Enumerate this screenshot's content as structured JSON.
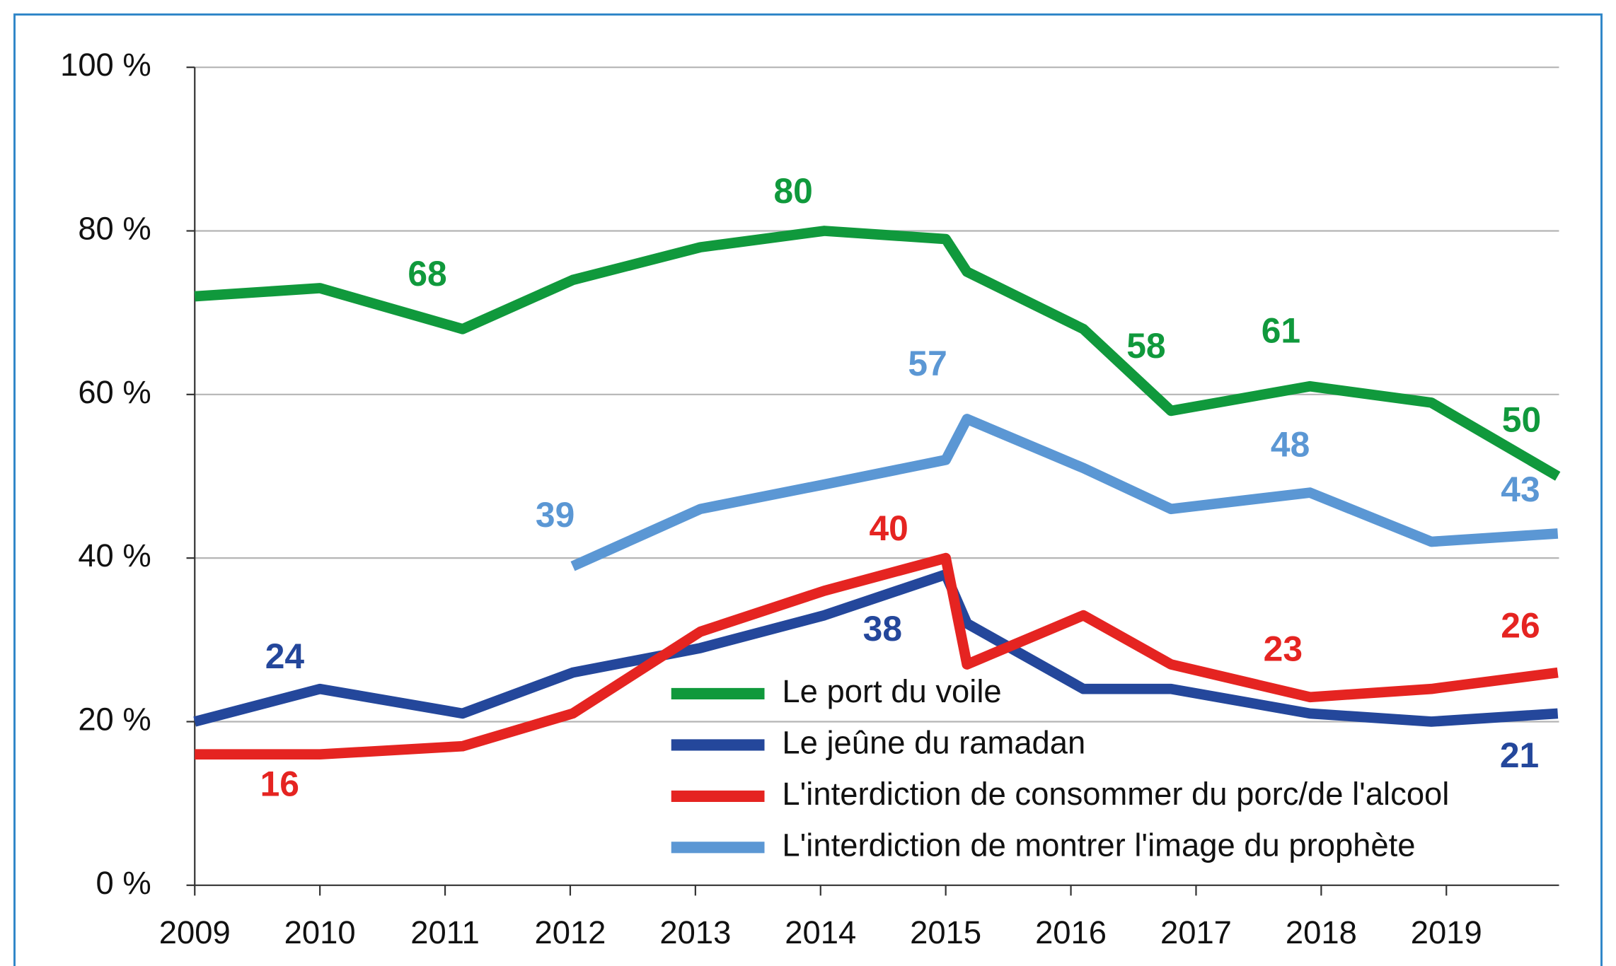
{
  "chart_data": {
    "type": "line",
    "x": [
      2009,
      2010,
      2011.14,
      2012.02,
      2013.04,
      2014.03,
      2015,
      2015.17,
      2016.1,
      2016.8,
      2017.91,
      2018.88,
      2019.89
    ],
    "series": [
      {
        "name": "Le port du voile",
        "color": "#10993c",
        "values": [
          72,
          73,
          68,
          74,
          78,
          80,
          79,
          75,
          68,
          58,
          61,
          59,
          50
        ],
        "value_labels": [
          null,
          null,
          "68",
          null,
          null,
          "80",
          null,
          null,
          null,
          "58",
          "61",
          null,
          "50"
        ]
      },
      {
        "name": "Le jeûne du ramadan",
        "color": "#24479b",
        "values": [
          20,
          24,
          21,
          26,
          29,
          33,
          38,
          32,
          24,
          24,
          21,
          20,
          21
        ],
        "value_labels": [
          null,
          "24",
          null,
          null,
          null,
          null,
          "38",
          null,
          null,
          null,
          null,
          null,
          "21"
        ]
      },
      {
        "name": "L'interdiction de consommer du porc/de l'alcool",
        "color": "#e52421",
        "values": [
          16,
          16,
          17,
          21,
          31,
          36,
          40,
          27,
          33,
          27,
          23,
          24,
          26
        ],
        "value_labels": [
          "16",
          null,
          null,
          null,
          null,
          null,
          "40",
          null,
          null,
          null,
          "23",
          null,
          "26"
        ]
      },
      {
        "name": "L'interdiction de montrer l'image du prophète",
        "color": "#5b97d4",
        "values": [
          null,
          null,
          null,
          39,
          46,
          49,
          52,
          57,
          51,
          46,
          48,
          42,
          43
        ],
        "value_labels": [
          null,
          null,
          null,
          "39",
          null,
          null,
          null,
          "57",
          null,
          null,
          "48",
          null,
          "43"
        ]
      }
    ],
    "xlim": [
      2009,
      2019.9
    ],
    "xticks": [
      2009,
      2010,
      2011,
      2012,
      2013,
      2014,
      2015,
      2016,
      2017,
      2018,
      2019
    ],
    "ylim": [
      0,
      100
    ],
    "yticks": [
      {
        "value": 0,
        "label": "0 %"
      },
      {
        "value": 20,
        "label": "20 %"
      },
      {
        "value": 40,
        "label": "40 %"
      },
      {
        "value": 60,
        "label": "60 %"
      },
      {
        "value": 80,
        "label": "80 %"
      },
      {
        "value": 100,
        "label": "100 %"
      }
    ],
    "grid": true,
    "legend": "lower center"
  }
}
